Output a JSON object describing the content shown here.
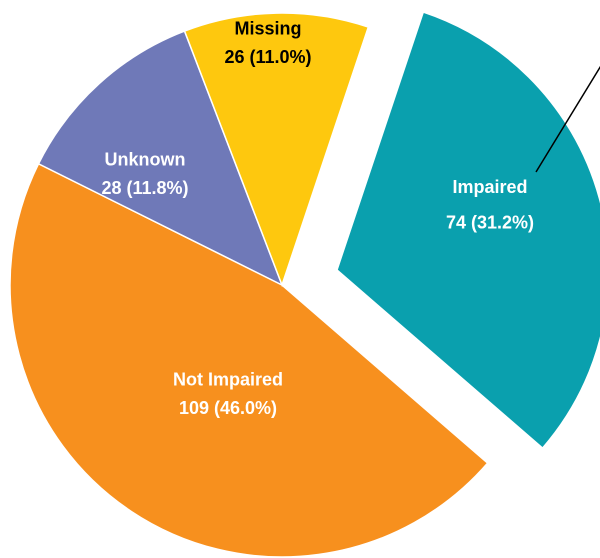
{
  "chart_data": {
    "type": "pie",
    "categories": [
      "Impaired",
      "Not Impaired",
      "Unknown",
      "Missing"
    ],
    "values": [
      74,
      109,
      28,
      26
    ],
    "value_labels": [
      "74 (31.2%)",
      "109 (46.0%)",
      "28 (11.8%)",
      "26 (11.0%)"
    ],
    "colors": [
      "#0aa0ae",
      "#f7901e",
      "#6f79b8",
      "#fec80e"
    ],
    "explode": [
      "Impaired"
    ]
  }
}
